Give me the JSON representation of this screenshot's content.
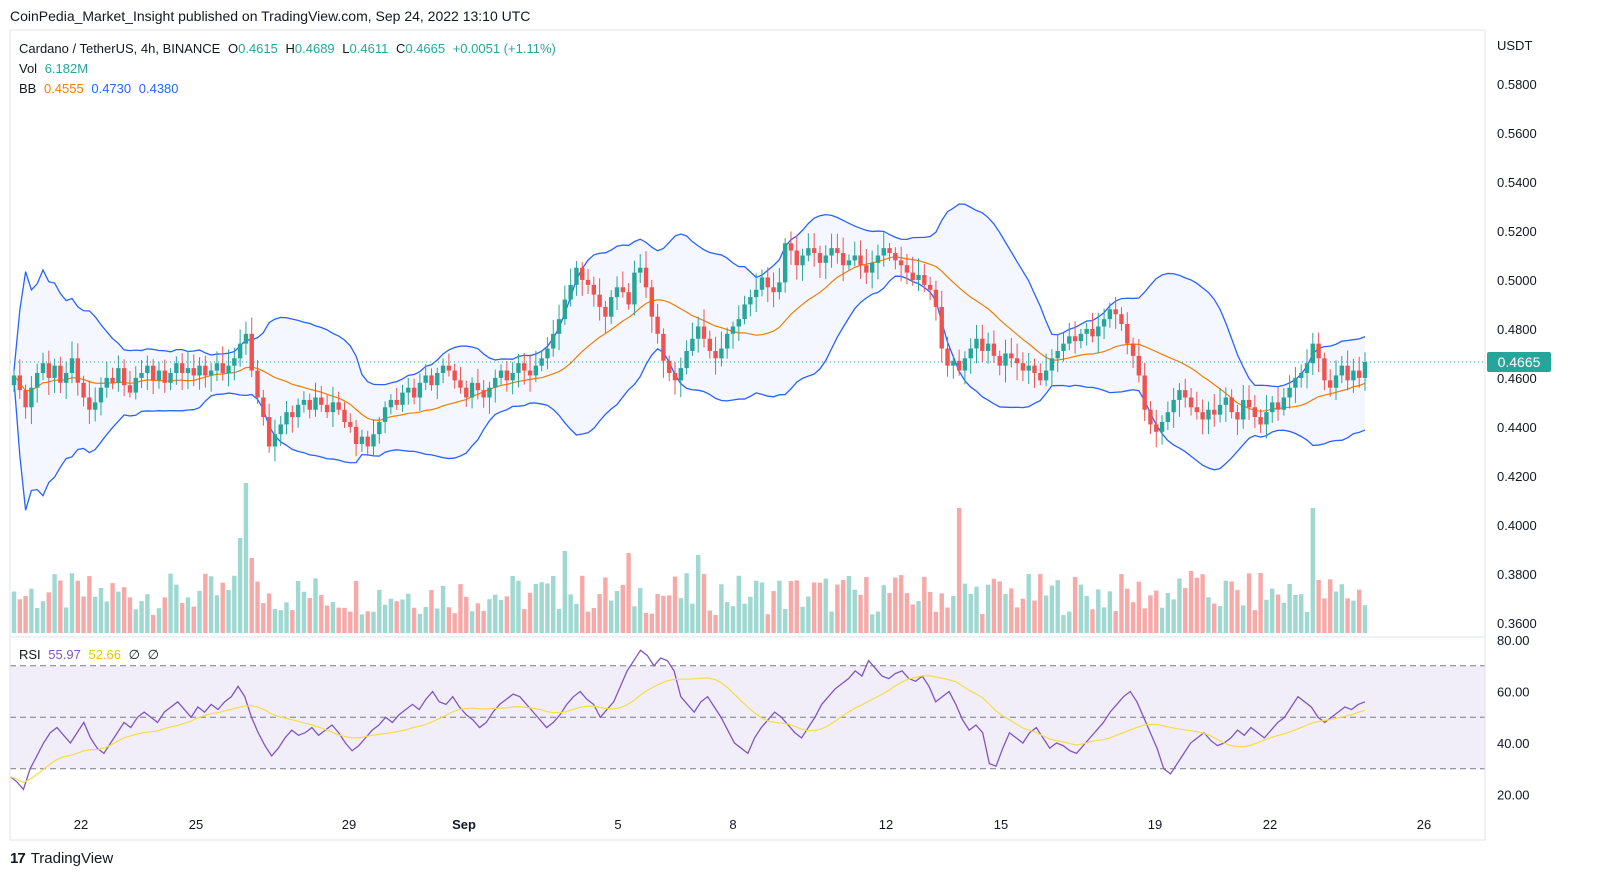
{
  "header": {
    "text": "CoinPedia_Market_Insight published on TradingView.com, Sep 24, 2022 13:10 UTC"
  },
  "legend": {
    "symbol": "Cardano / TetherUS, 4h, BINANCE",
    "o_label": "O",
    "o_value": "0.4615",
    "h_label": "H",
    "h_value": "0.4689",
    "l_label": "L",
    "l_value": "0.4611",
    "c_label": "C",
    "c_value": "0.4665",
    "change": "+0.0051 (+1.11%)",
    "vol_label": "Vol",
    "vol_value": "6.182M",
    "bb_label": "BB",
    "bb_basis": "0.4555",
    "bb_upper": "0.4730",
    "bb_lower": "0.4380"
  },
  "rsi_legend": {
    "label": "RSI",
    "rsi_value": "55.97",
    "ma_value": "52.66",
    "na1": "∅",
    "na2": "∅"
  },
  "price_axis": {
    "unit": "USDT",
    "current_price": "0.4665"
  },
  "footer": {
    "logo": "17",
    "brand": "TradingView"
  },
  "colors": {
    "up": "#26a69a",
    "down": "#ef5350",
    "bb_band": "#2962ff",
    "bb_basis": "#f57c00",
    "rsi": "#7e57c2",
    "rsi_ma": "#f5dc4a"
  },
  "chart_data": [
    {
      "type": "candlestick",
      "title": "Cardano / TetherUS, 4h, BINANCE",
      "y_axis": {
        "unit": "USDT",
        "ticks": [
          "0.5800",
          "0.5600",
          "0.5400",
          "0.5200",
          "0.5000",
          "0.4800",
          "0.4600",
          "0.4400",
          "0.4200",
          "0.4000",
          "0.3800",
          "0.3600"
        ],
        "range": [
          0.355,
          0.598
        ]
      },
      "x_axis": {
        "ticks": [
          "22",
          "25",
          "29",
          "Sep",
          "5",
          "8",
          "12",
          "15",
          "19",
          "22",
          "26"
        ]
      },
      "ohlc_summary": {
        "open": 0.4615,
        "high": 0.4689,
        "low": 0.4611,
        "close": 0.4665
      },
      "indicators": {
        "bollinger_bands": {
          "basis": 0.4555,
          "upper": 0.473,
          "lower": 0.438
        },
        "volume_last": "6.182M"
      },
      "close_series": [
        0.461,
        0.455,
        0.448,
        0.456,
        0.462,
        0.466,
        0.46,
        0.465,
        0.458,
        0.462,
        0.468,
        0.458,
        0.452,
        0.447,
        0.45,
        0.456,
        0.46,
        0.458,
        0.464,
        0.457,
        0.454,
        0.46,
        0.462,
        0.465,
        0.459,
        0.463,
        0.458,
        0.462,
        0.466,
        0.462,
        0.464,
        0.461,
        0.465,
        0.461,
        0.463,
        0.466,
        0.462,
        0.465,
        0.468,
        0.474,
        0.478,
        0.463,
        0.452,
        0.444,
        0.432,
        0.437,
        0.441,
        0.446,
        0.444,
        0.449,
        0.451,
        0.447,
        0.452,
        0.449,
        0.446,
        0.45,
        0.447,
        0.442,
        0.44,
        0.433,
        0.436,
        0.432,
        0.437,
        0.442,
        0.448,
        0.451,
        0.449,
        0.454,
        0.456,
        0.452,
        0.458,
        0.461,
        0.457,
        0.462,
        0.465,
        0.463,
        0.459,
        0.456,
        0.452,
        0.458,
        0.455,
        0.452,
        0.456,
        0.46,
        0.463,
        0.459,
        0.462,
        0.466,
        0.463,
        0.461,
        0.465,
        0.468,
        0.472,
        0.478,
        0.484,
        0.492,
        0.498,
        0.505,
        0.5,
        0.498,
        0.494,
        0.489,
        0.485,
        0.493,
        0.497,
        0.495,
        0.49,
        0.503,
        0.505,
        0.497,
        0.485,
        0.478,
        0.467,
        0.462,
        0.459,
        0.464,
        0.471,
        0.476,
        0.481,
        0.476,
        0.471,
        0.468,
        0.472,
        0.478,
        0.481,
        0.484,
        0.49,
        0.493,
        0.496,
        0.501,
        0.497,
        0.495,
        0.499,
        0.515,
        0.512,
        0.506,
        0.51,
        0.513,
        0.511,
        0.507,
        0.51,
        0.513,
        0.511,
        0.506,
        0.508,
        0.51,
        0.506,
        0.503,
        0.507,
        0.51,
        0.513,
        0.511,
        0.508,
        0.506,
        0.503,
        0.5,
        0.502,
        0.498,
        0.496,
        0.489,
        0.472,
        0.465,
        0.467,
        0.463,
        0.468,
        0.472,
        0.476,
        0.471,
        0.474,
        0.469,
        0.465,
        0.47,
        0.468,
        0.466,
        0.463,
        0.465,
        0.462,
        0.459,
        0.463,
        0.468,
        0.471,
        0.474,
        0.477,
        0.475,
        0.478,
        0.48,
        0.477,
        0.481,
        0.484,
        0.488,
        0.486,
        0.482,
        0.474,
        0.469,
        0.461,
        0.447,
        0.441,
        0.438,
        0.442,
        0.446,
        0.451,
        0.455,
        0.452,
        0.448,
        0.446,
        0.443,
        0.447,
        0.445,
        0.449,
        0.452,
        0.446,
        0.443,
        0.451,
        0.448,
        0.444,
        0.441,
        0.446,
        0.45,
        0.447,
        0.452,
        0.456,
        0.46,
        0.462,
        0.466,
        0.474,
        0.468,
        0.459,
        0.456,
        0.461,
        0.465,
        0.459,
        0.463,
        0.46,
        0.4665
      ],
      "volume_spikes": [
        "Aug 26 ~0.417 peak",
        "Sep 13 ~0.408",
        "Sep 21 ~0.408"
      ]
    },
    {
      "type": "line",
      "title": "RSI",
      "series": [
        {
          "name": "RSI",
          "last": 55.97
        },
        {
          "name": "RSI-based MA",
          "last": 52.66
        }
      ],
      "y_axis": {
        "ticks": [
          "80.00",
          "60.00",
          "40.00",
          "20.00"
        ],
        "range": [
          14,
          80
        ],
        "bands": [
          30,
          50,
          70
        ]
      },
      "rsi_series": [
        27,
        25,
        22,
        30,
        35,
        40,
        44,
        46,
        43,
        40,
        44,
        48,
        42,
        38,
        36,
        40,
        44,
        48,
        46,
        50,
        52,
        50,
        48,
        52,
        54,
        56,
        53,
        50,
        54,
        52,
        55,
        53,
        56,
        58,
        62,
        58,
        50,
        44,
        39,
        35,
        38,
        42,
        45,
        43,
        44,
        46,
        43,
        45,
        47,
        44,
        40,
        37,
        39,
        42,
        45,
        47,
        50,
        48,
        51,
        53,
        55,
        53,
        57,
        60,
        56,
        55,
        58,
        54,
        51,
        49,
        46,
        48,
        52,
        55,
        57,
        59,
        58,
        55,
        52,
        49,
        46,
        48,
        51,
        55,
        58,
        60,
        57,
        55,
        50,
        53,
        56,
        62,
        68,
        72,
        76,
        74,
        70,
        73,
        72,
        68,
        58,
        55,
        52,
        56,
        58,
        54,
        50,
        45,
        40,
        38,
        36,
        42,
        46,
        49,
        52,
        50,
        47,
        44,
        42,
        46,
        50,
        55,
        58,
        61,
        63,
        65,
        68,
        66,
        72,
        69,
        66,
        65,
        67,
        68,
        65,
        64,
        66,
        62,
        56,
        58,
        60,
        55,
        49,
        45,
        47,
        44,
        32,
        31,
        38,
        44,
        42,
        40,
        44,
        46,
        42,
        38,
        40,
        39,
        37,
        36,
        39,
        42,
        45,
        48,
        52,
        55,
        58,
        60,
        56,
        50,
        44,
        38,
        30,
        28,
        32,
        36,
        40,
        42,
        44,
        41,
        39,
        40,
        42,
        45,
        43,
        46,
        44,
        42,
        45,
        48,
        50,
        54,
        58,
        56,
        54,
        50,
        48,
        50,
        52,
        54,
        53,
        55,
        56
      ]
    }
  ]
}
